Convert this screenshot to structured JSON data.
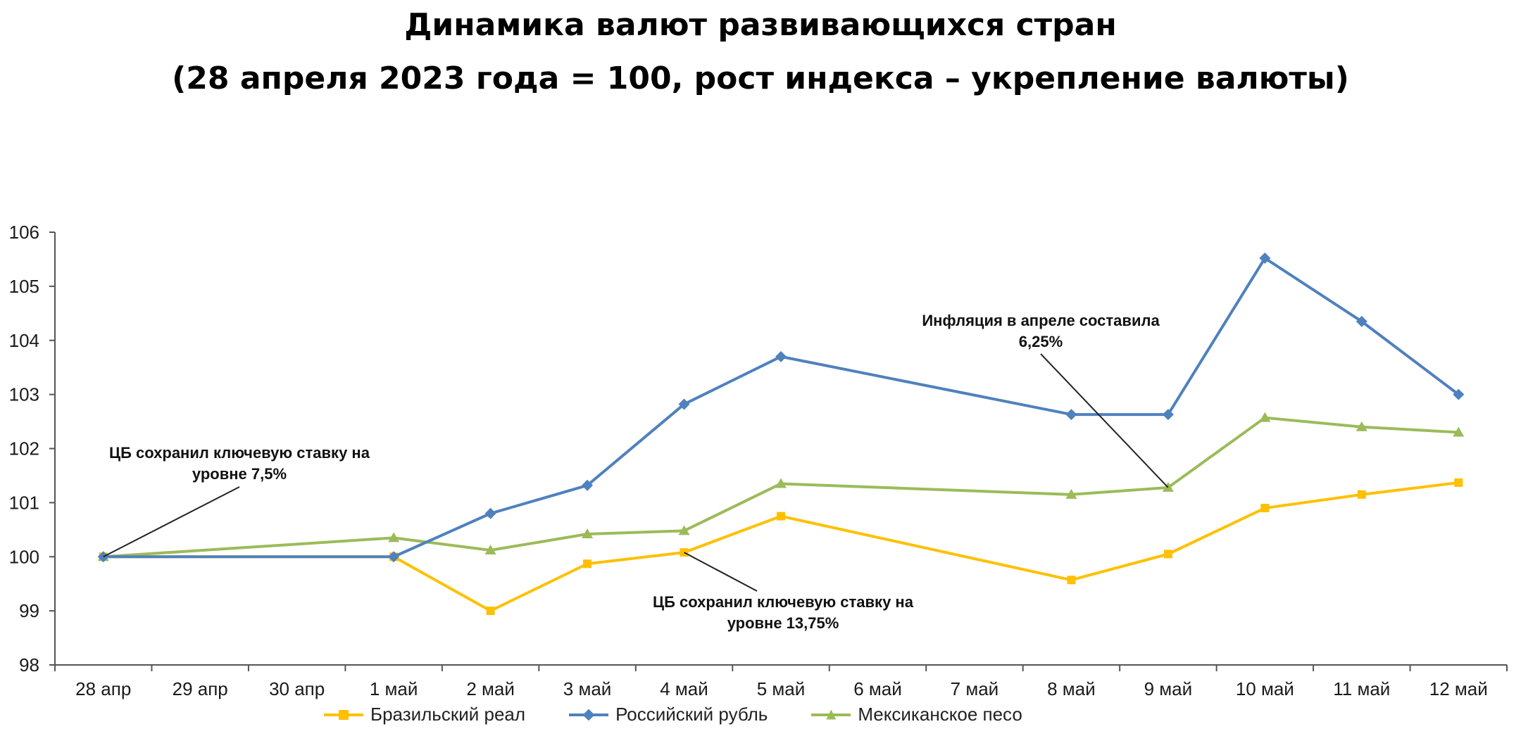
{
  "chart_data": {
    "type": "line",
    "title": "Динамика валют развивающихся стран",
    "subtitle": "(28 апреля 2023 года = 100, рост индекса – укрепление валюты)",
    "categories": [
      "28 апр",
      "29 апр",
      "30 апр",
      "1 май",
      "2 май",
      "3 май",
      "4 май",
      "5 май",
      "6 май",
      "7 май",
      "8 май",
      "9 май",
      "10 май",
      "11 май",
      "12 май"
    ],
    "ylim": [
      98,
      106
    ],
    "yticks": [
      "98",
      "99",
      "100",
      "101",
      "102",
      "103",
      "104",
      "105",
      "106"
    ],
    "series": [
      {
        "name": "Бразильский реал",
        "color": "#FFC000",
        "marker": "square",
        "values": [
          100.0,
          null,
          null,
          100.0,
          99.0,
          99.87,
          100.08,
          100.75,
          null,
          null,
          99.57,
          100.05,
          100.9,
          101.15,
          101.37
        ]
      },
      {
        "name": "Российский рубль",
        "color": "#4F81BD",
        "marker": "diamond",
        "values": [
          100.0,
          null,
          null,
          100.0,
          100.8,
          101.32,
          102.82,
          103.7,
          null,
          null,
          102.63,
          102.63,
          105.52,
          104.35,
          103.0
        ]
      },
      {
        "name": "Мексиканское песо",
        "color": "#9BBB59",
        "marker": "triangle",
        "values": [
          100.0,
          null,
          null,
          100.35,
          100.12,
          100.42,
          100.48,
          101.35,
          null,
          null,
          101.15,
          101.28,
          102.57,
          102.4,
          102.3
        ]
      }
    ],
    "annotations": [
      {
        "lines": [
          "ЦБ сохранил ключевую ставку на",
          "уровне 7,5%"
        ],
        "category": "28 апр",
        "series": "Мексиканское песо"
      },
      {
        "lines": [
          "ЦБ сохранил ключевую ставку на",
          "уровне 13,75%"
        ],
        "category": "4 май",
        "series": "Бразильский реал"
      },
      {
        "lines": [
          "Инфляция в апреле составила",
          "6,25%"
        ],
        "category": "9 май",
        "series": "Мексиканское песо"
      }
    ],
    "legend_position": "bottom",
    "grid": false
  }
}
